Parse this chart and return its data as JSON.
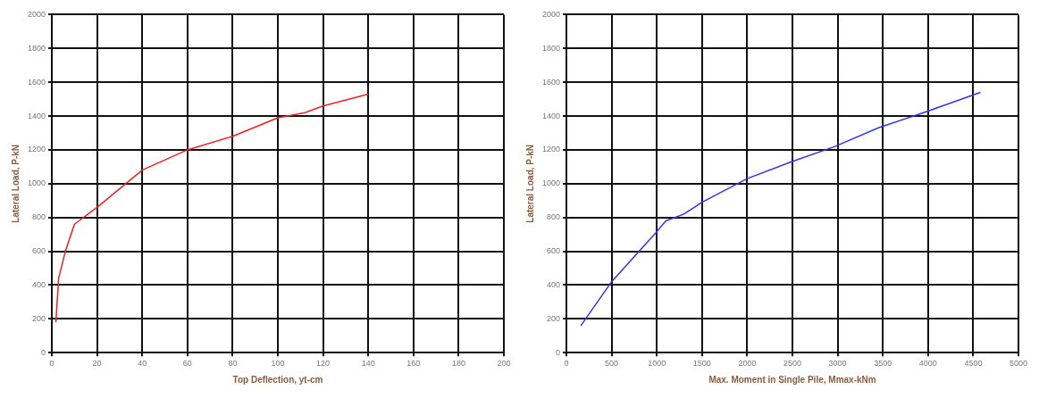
{
  "chart_data": [
    {
      "type": "line",
      "xlabel": "Top Deflection, yt-cm",
      "ylabel": "Lateral Load, P-kN",
      "xlim": [
        0,
        200
      ],
      "xticks": [
        0,
        20,
        40,
        60,
        80,
        100,
        120,
        140,
        160,
        180,
        200
      ],
      "ylim": [
        0,
        2000
      ],
      "yticks": [
        0,
        200,
        400,
        600,
        800,
        1000,
        1200,
        1400,
        1600,
        1800,
        2000
      ],
      "grid": true,
      "legend": false,
      "marker": "none",
      "line_style": "solid",
      "series": [
        {
          "color": "#ee2222",
          "x": [
            1.8,
            3,
            6,
            10,
            16,
            20,
            40,
            60,
            80,
            100,
            112,
            120,
            140
          ],
          "values": [
            180,
            440,
            600,
            760,
            820,
            860,
            1080,
            1200,
            1280,
            1390,
            1420,
            1460,
            1530
          ]
        }
      ]
    },
    {
      "type": "line",
      "xlabel": "Max. Moment in Single Pile, Mmax-kNm",
      "ylabel": "Lateral Load, P-kN",
      "xlim": [
        0,
        5000
      ],
      "xticks": [
        0,
        500,
        1000,
        1500,
        2000,
        2500,
        3000,
        3500,
        4000,
        4500,
        5000
      ],
      "ylim": [
        0,
        2000
      ],
      "yticks": [
        0,
        200,
        400,
        600,
        800,
        1000,
        1200,
        1400,
        1600,
        1800,
        2000
      ],
      "grid": true,
      "legend": false,
      "marker": "none",
      "line_style": "solid",
      "series": [
        {
          "color": "#3333ee",
          "x": [
            160,
            500,
            820,
            990,
            1100,
            1300,
            1500,
            2000,
            2490,
            2970,
            3450,
            3950,
            4580
          ],
          "values": [
            160,
            420,
            610,
            710,
            780,
            820,
            890,
            1030,
            1130,
            1220,
            1330,
            1420,
            1540
          ]
        }
      ]
    }
  ]
}
